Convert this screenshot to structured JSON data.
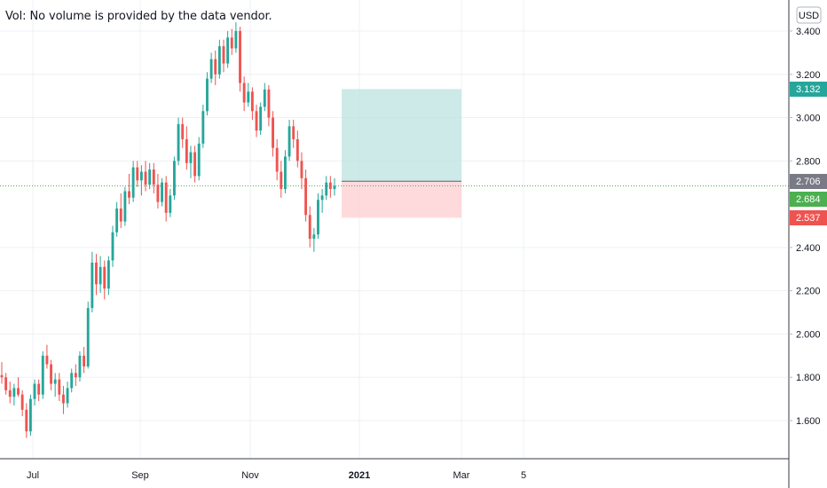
{
  "overlay": {
    "volume_note": "Vol: No volume is provided by the data vendor."
  },
  "colors": {
    "up": "#26a69a",
    "down": "#ef5350",
    "grid": "#eef0f3",
    "axis_text": "#131722",
    "profit_zone": "#b2dfdb",
    "loss_zone": "#ffcdd2",
    "price_line": "#4caf50",
    "entry_badge": "#787b86"
  },
  "chart_data": {
    "type": "candlestick",
    "currency_label": "USD",
    "y_ticks": [
      "3.400",
      "3.200",
      "3.000",
      "2.800",
      "2.400",
      "2.200",
      "2.000",
      "1.800",
      "1.600"
    ],
    "x_ticks": [
      "Jul",
      "Sep",
      "Nov",
      "2021",
      "Mar",
      "5"
    ],
    "ylim": [
      1.42,
      3.46
    ],
    "grid": true,
    "series": [
      {
        "ohlc": [
          [
            1.81,
            1.87,
            1.77,
            1.8
          ],
          [
            1.8,
            1.82,
            1.72,
            1.74
          ],
          [
            1.74,
            1.78,
            1.68,
            1.71
          ],
          [
            1.71,
            1.77,
            1.67,
            1.75
          ],
          [
            1.75,
            1.8,
            1.71,
            1.72
          ],
          [
            1.72,
            1.74,
            1.62,
            1.65
          ],
          [
            1.65,
            1.68,
            1.52,
            1.55
          ],
          [
            1.55,
            1.72,
            1.53,
            1.7
          ],
          [
            1.7,
            1.79,
            1.67,
            1.77
          ],
          [
            1.77,
            1.79,
            1.69,
            1.72
          ],
          [
            1.72,
            1.92,
            1.7,
            1.9
          ],
          [
            1.9,
            1.95,
            1.84,
            1.86
          ],
          [
            1.86,
            1.88,
            1.74,
            1.77
          ],
          [
            1.77,
            1.82,
            1.71,
            1.79
          ],
          [
            1.79,
            1.82,
            1.69,
            1.72
          ],
          [
            1.72,
            1.76,
            1.63,
            1.68
          ],
          [
            1.68,
            1.78,
            1.66,
            1.75
          ],
          [
            1.75,
            1.84,
            1.73,
            1.82
          ],
          [
            1.82,
            1.86,
            1.76,
            1.8
          ],
          [
            1.8,
            1.92,
            1.78,
            1.9
          ],
          [
            1.9,
            1.94,
            1.82,
            1.85
          ],
          [
            1.85,
            2.15,
            1.84,
            2.12
          ],
          [
            2.12,
            2.38,
            2.1,
            2.33
          ],
          [
            2.33,
            2.37,
            2.18,
            2.23
          ],
          [
            2.23,
            2.36,
            2.19,
            2.31
          ],
          [
            2.31,
            2.34,
            2.16,
            2.21
          ],
          [
            2.21,
            2.36,
            2.18,
            2.34
          ],
          [
            2.34,
            2.5,
            2.31,
            2.47
          ],
          [
            2.47,
            2.61,
            2.45,
            2.58
          ],
          [
            2.58,
            2.65,
            2.49,
            2.52
          ],
          [
            2.52,
            2.68,
            2.5,
            2.66
          ],
          [
            2.66,
            2.74,
            2.6,
            2.63
          ],
          [
            2.63,
            2.8,
            2.61,
            2.77
          ],
          [
            2.77,
            2.8,
            2.68,
            2.71
          ],
          [
            2.71,
            2.78,
            2.64,
            2.75
          ],
          [
            2.75,
            2.8,
            2.66,
            2.69
          ],
          [
            2.69,
            2.79,
            2.67,
            2.76
          ],
          [
            2.76,
            2.79,
            2.65,
            2.69
          ],
          [
            2.69,
            2.74,
            2.58,
            2.61
          ],
          [
            2.61,
            2.72,
            2.59,
            2.7
          ],
          [
            2.7,
            2.73,
            2.52,
            2.56
          ],
          [
            2.56,
            2.67,
            2.54,
            2.64
          ],
          [
            2.64,
            2.82,
            2.62,
            2.8
          ],
          [
            2.8,
            3.0,
            2.78,
            2.97
          ],
          [
            2.97,
            3.0,
            2.86,
            2.9
          ],
          [
            2.9,
            2.96,
            2.76,
            2.79
          ],
          [
            2.79,
            2.87,
            2.72,
            2.84
          ],
          [
            2.84,
            2.87,
            2.7,
            2.73
          ],
          [
            2.73,
            2.91,
            2.71,
            2.88
          ],
          [
            2.88,
            3.06,
            2.86,
            3.03
          ],
          [
            3.03,
            3.21,
            3.01,
            3.18
          ],
          [
            3.18,
            3.3,
            3.16,
            3.27
          ],
          [
            3.27,
            3.31,
            3.15,
            3.2
          ],
          [
            3.2,
            3.36,
            3.18,
            3.33
          ],
          [
            3.33,
            3.36,
            3.21,
            3.25
          ],
          [
            3.25,
            3.4,
            3.23,
            3.37
          ],
          [
            3.37,
            3.41,
            3.29,
            3.32
          ],
          [
            3.32,
            3.44,
            3.3,
            3.4
          ],
          [
            3.4,
            3.42,
            3.12,
            3.16
          ],
          [
            3.16,
            3.19,
            3.03,
            3.07
          ],
          [
            3.07,
            3.16,
            3.05,
            3.12
          ],
          [
            3.12,
            3.14,
            2.99,
            3.03
          ],
          [
            3.03,
            3.06,
            2.91,
            2.94
          ],
          [
            2.94,
            3.07,
            2.92,
            3.05
          ],
          [
            3.05,
            3.16,
            3.03,
            3.13
          ],
          [
            3.13,
            3.15,
            2.96,
            3.0
          ],
          [
            3.0,
            3.03,
            2.82,
            2.86
          ],
          [
            2.86,
            2.9,
            2.71,
            2.75
          ],
          [
            2.75,
            2.8,
            2.63,
            2.67
          ],
          [
            2.67,
            2.85,
            2.65,
            2.82
          ],
          [
            2.82,
            2.99,
            2.8,
            2.96
          ],
          [
            2.96,
            2.99,
            2.86,
            2.9
          ],
          [
            2.9,
            2.94,
            2.77,
            2.8
          ],
          [
            2.8,
            2.84,
            2.67,
            2.72
          ],
          [
            2.72,
            2.76,
            2.52,
            2.55
          ],
          [
            2.55,
            2.59,
            2.4,
            2.44
          ],
          [
            2.44,
            2.49,
            2.38,
            2.46
          ],
          [
            2.46,
            2.65,
            2.44,
            2.62
          ],
          [
            2.62,
            2.67,
            2.56,
            2.64
          ],
          [
            2.64,
            2.73,
            2.62,
            2.7
          ],
          [
            2.7,
            2.73,
            2.63,
            2.67
          ],
          [
            2.67,
            2.72,
            2.64,
            2.684
          ]
        ]
      }
    ],
    "current_price": "2.684",
    "position_tool": {
      "entry": "2.706",
      "target": "3.132",
      "stop": "2.537",
      "entry_value": 2.706,
      "target_value": 3.132,
      "stop_value": 2.537
    }
  }
}
